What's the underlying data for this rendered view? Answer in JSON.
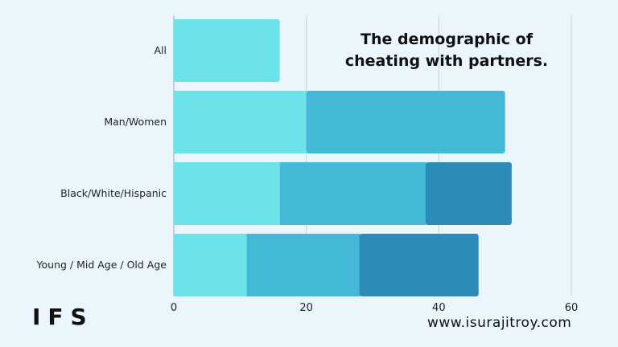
{
  "brand": "IFS",
  "website": "www.isurajitroy.com",
  "chart_data": {
    "type": "bar",
    "orientation": "horizontal",
    "stacked": true,
    "title": "The demographic of cheating with partners.",
    "categories": [
      "All",
      "Man/Women",
      "Black/White/Hispanic",
      "Young / Mid Age / Old Age"
    ],
    "segments": [
      [
        16
      ],
      [
        20,
        30
      ],
      [
        16,
        22,
        13
      ],
      [
        11,
        17,
        18
      ]
    ],
    "segment_colors": [
      "#6be3e8",
      "#43b9d7",
      "#2d8bb9"
    ],
    "xlim": [
      0,
      60
    ],
    "xticks": [
      0,
      20,
      40,
      60
    ],
    "grid": true,
    "legend": "none"
  }
}
